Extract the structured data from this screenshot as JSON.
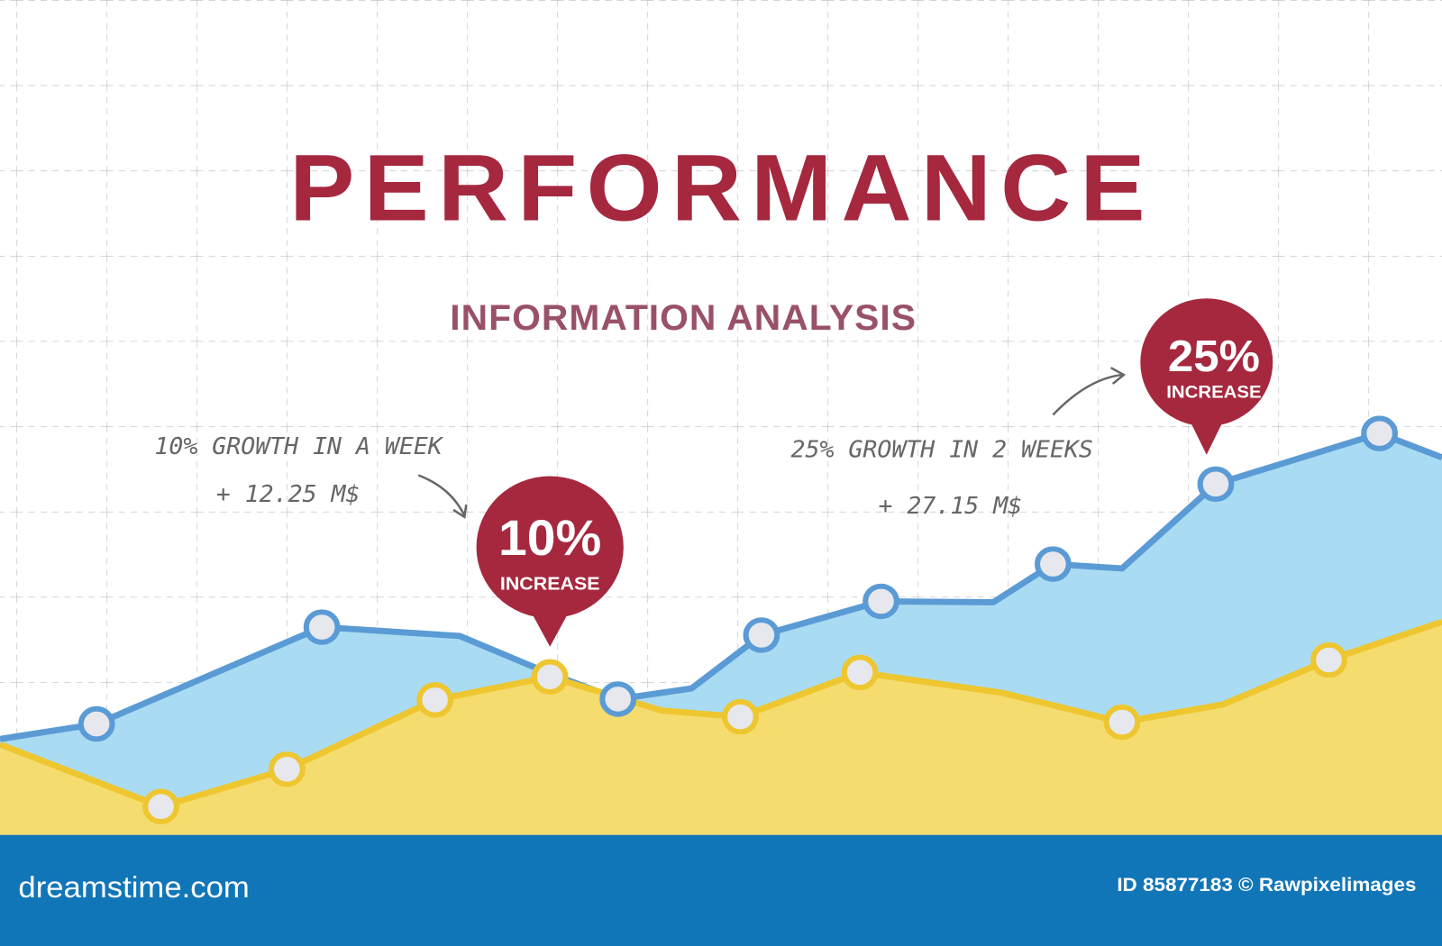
{
  "header": {
    "title": "PERFORMANCE",
    "subtitle": "INFORMATION ANALYSIS"
  },
  "annotations": [
    {
      "text": "10% GROWTH IN A WEEK",
      "amount": "+ 12.25 M$"
    },
    {
      "text": "25% GROWTH IN 2 WEEKS",
      "amount": "+ 27.15 M$"
    }
  ],
  "badges": [
    {
      "value": "10%",
      "label": "INCREASE"
    },
    {
      "value": "25%",
      "label": "INCREASE"
    }
  ],
  "footer": {
    "brand": "dreamstime.com",
    "credit": "ID 85877183 © Rawpixelimages"
  }
}
